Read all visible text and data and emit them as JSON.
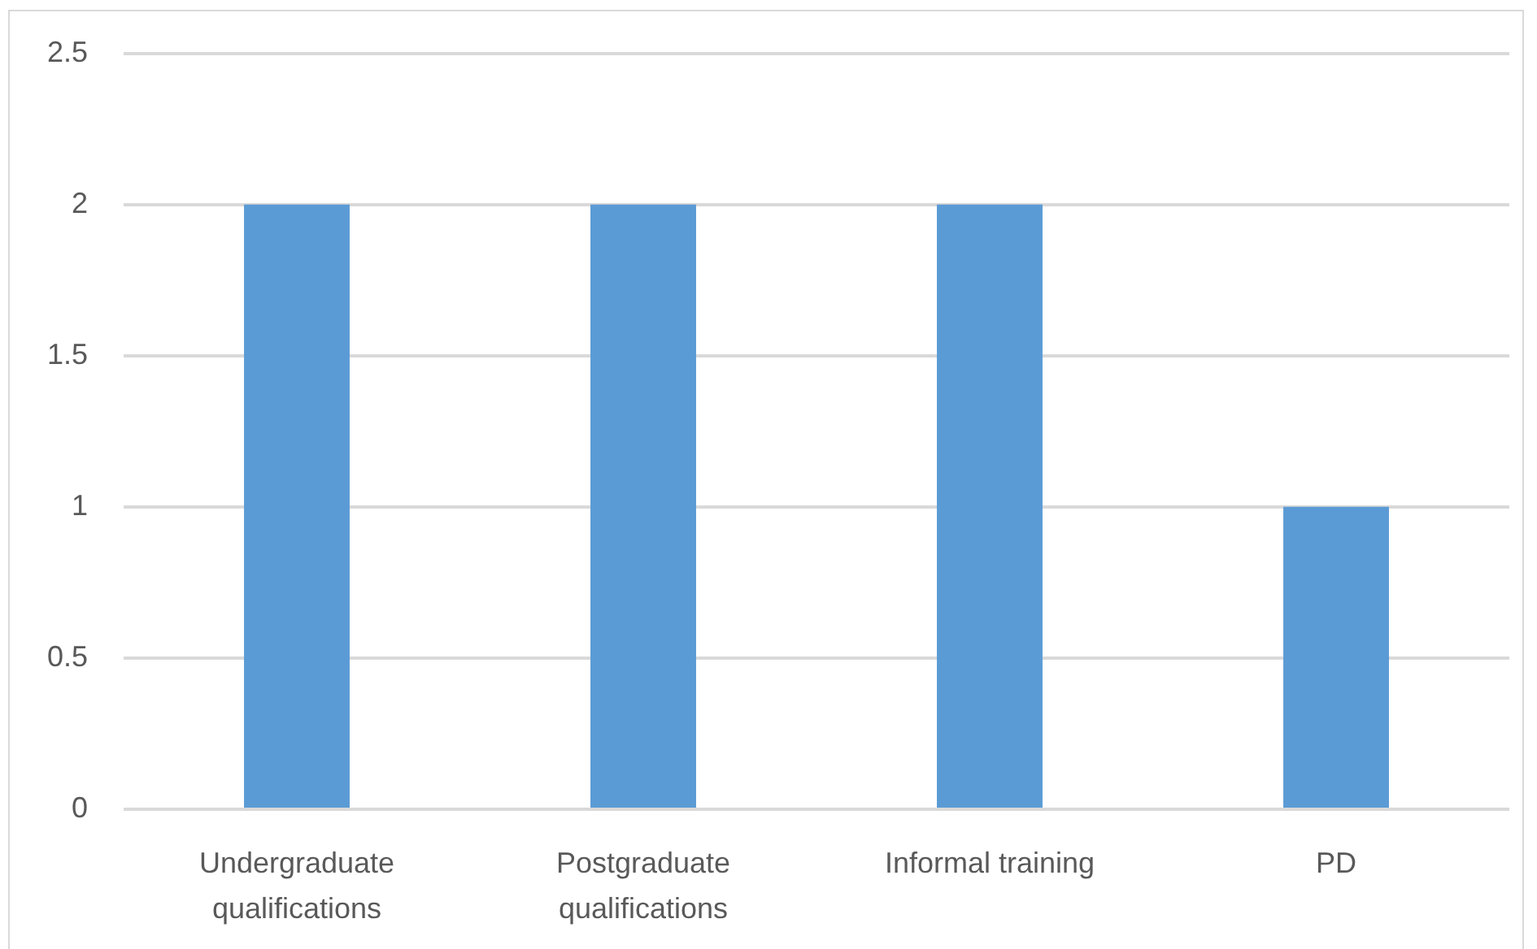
{
  "chart_data": {
    "type": "bar",
    "categories": [
      "Undergraduate qualifications",
      "Postgraduate qualifications",
      "Informal training",
      "PD"
    ],
    "values": [
      2,
      2,
      2,
      1
    ],
    "color": "#5b9bd5",
    "ylim": [
      0,
      2.5
    ],
    "yticks": [
      0,
      0.5,
      1,
      1.5,
      2,
      2.5
    ],
    "grid": "y"
  }
}
